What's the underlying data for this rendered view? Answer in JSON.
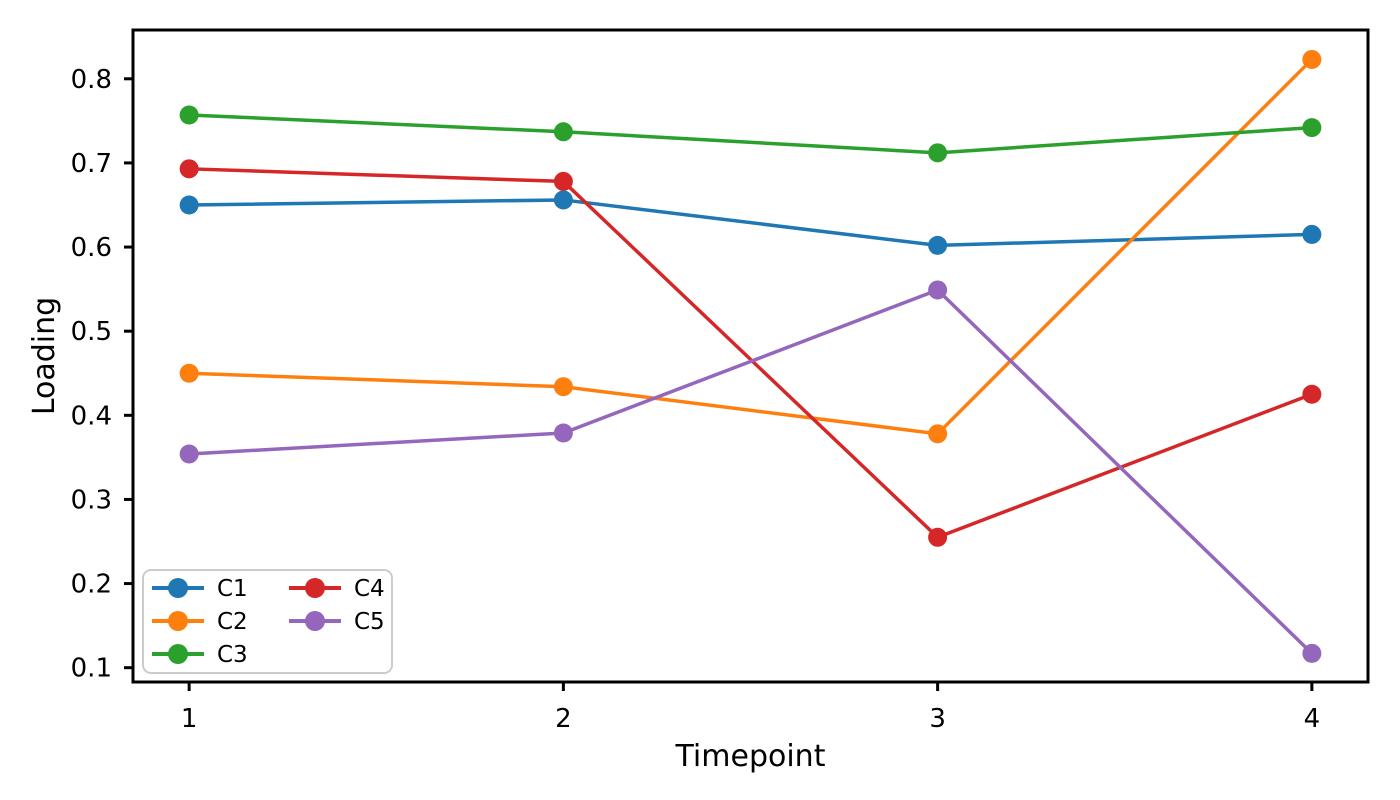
{
  "chart_data": {
    "type": "line",
    "title": "",
    "xlabel": "Timepoint",
    "ylabel": "Loading",
    "x": [
      1,
      2,
      3,
      4
    ],
    "xticks": [
      "1",
      "2",
      "3",
      "4"
    ],
    "yticks": [
      "0.1",
      "0.2",
      "0.3",
      "0.4",
      "0.5",
      "0.6",
      "0.7",
      "0.8"
    ],
    "xlim": [
      0.85,
      4.15
    ],
    "ylim": [
      0.083,
      0.858
    ],
    "grid": false,
    "legend": {
      "position": "lower-left",
      "columns": 2,
      "entries": [
        "C1",
        "C2",
        "C3",
        "C4",
        "C5"
      ]
    },
    "series": [
      {
        "name": "C1",
        "color": "#1f77b4",
        "values": [
          0.65,
          0.656,
          0.602,
          0.615
        ]
      },
      {
        "name": "C2",
        "color": "#ff7f0e",
        "values": [
          0.45,
          0.434,
          0.378,
          0.823
        ]
      },
      {
        "name": "C3",
        "color": "#2ca02c",
        "values": [
          0.757,
          0.737,
          0.712,
          0.742
        ]
      },
      {
        "name": "C4",
        "color": "#d62728",
        "values": [
          0.693,
          0.678,
          0.255,
          0.425
        ]
      },
      {
        "name": "C5",
        "color": "#9467bd",
        "values": [
          0.354,
          0.379,
          0.549,
          0.117
        ]
      }
    ]
  },
  "colors": {
    "axis": "#000000",
    "tick_label": "#000000",
    "legend_border": "#cccccc",
    "legend_background": "#ffffff",
    "background": "#ffffff"
  }
}
